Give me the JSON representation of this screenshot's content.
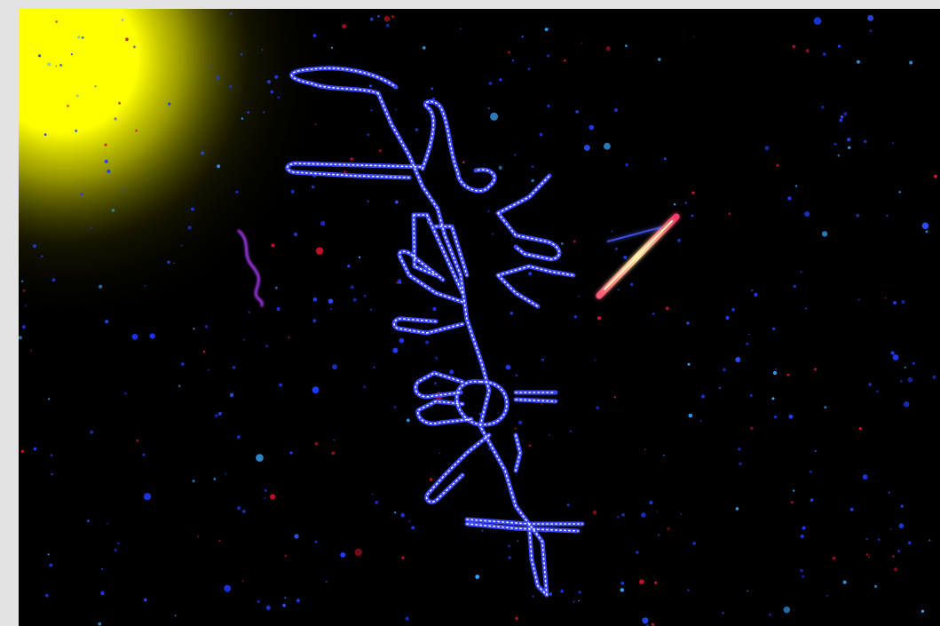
{
  "image": {
    "kind": "space-scene-illustration",
    "subjects": [
      "sun",
      "rna-secondary-structure",
      "comet",
      "starfield"
    ]
  },
  "colors": {
    "frame": "#e3e3e3",
    "space": "#000000",
    "sun": "#ffff00",
    "structure": "#3c46ff",
    "structure_highlight": "#e8ecff",
    "comet": "#ff3a6a",
    "comet_core": "#fff2a0",
    "squiggle": "#b03cff",
    "star_blue": "#1e3cff",
    "star_cyan": "#36a8ff",
    "star_red": "#d0142a"
  },
  "icons": [
    "sun-icon",
    "comet-icon",
    "rna-structure-icon",
    "squiggle-icon"
  ]
}
